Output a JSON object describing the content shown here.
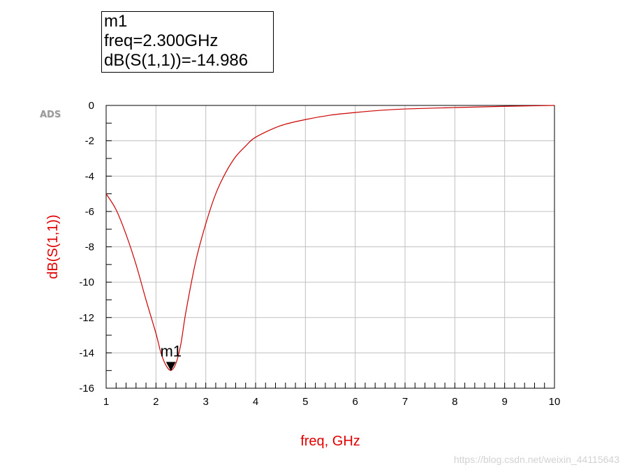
{
  "marker_box": {
    "name": "m1",
    "freq_line": "freq=2.300GHz",
    "value_line": "dB(S(1,1))=-14.986"
  },
  "logo": "ADS",
  "watermark": "https://blog.csdn.net/weixin_44115643",
  "colors": {
    "trace": "#cc0000",
    "axis_title": "#e00000",
    "grid": "#c0c0c0",
    "axis": "#000000"
  },
  "chart_data": {
    "type": "line",
    "title": "",
    "xlabel": "freq, GHz",
    "ylabel": "dB(S(1,1))",
    "xlim": [
      1,
      10
    ],
    "ylim": [
      -16,
      0
    ],
    "x_ticks": [
      1,
      2,
      3,
      4,
      5,
      6,
      7,
      8,
      9,
      10
    ],
    "y_ticks": [
      0,
      -2,
      -4,
      -6,
      -8,
      -10,
      -12,
      -14,
      -16
    ],
    "x_minor_step": 0.2,
    "y_minor_step": 1,
    "grid": true,
    "series": [
      {
        "x": [
          1.0,
          1.2,
          1.4,
          1.6,
          1.8,
          2.0,
          2.1,
          2.2,
          2.3,
          2.4,
          2.5,
          2.6,
          2.8,
          3.0,
          3.2,
          3.4,
          3.6,
          3.8,
          4.0,
          4.5,
          5.0,
          5.5,
          6.0,
          6.5,
          7.0,
          8.0,
          9.0,
          10.0
        ],
        "y": [
          -5.0,
          -5.9,
          -7.3,
          -9.0,
          -11.0,
          -12.9,
          -14.0,
          -14.7,
          -14.99,
          -14.6,
          -13.5,
          -11.7,
          -8.8,
          -6.7,
          -5.0,
          -3.8,
          -2.9,
          -2.3,
          -1.8,
          -1.15,
          -0.8,
          -0.55,
          -0.4,
          -0.28,
          -0.2,
          -0.12,
          -0.05,
          0.0
        ]
      }
    ],
    "markers": [
      {
        "name": "m1",
        "x": 2.3,
        "y": -14.986
      }
    ]
  }
}
